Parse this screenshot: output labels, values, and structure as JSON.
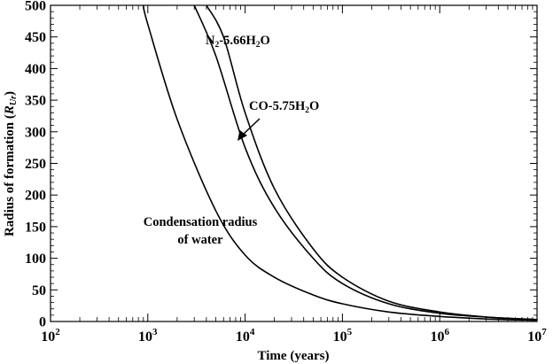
{
  "chart_data": {
    "type": "line",
    "xlabel": "Time (years)",
    "ylabel_main": "Radius of formation (",
    "ylabel_sym": "R",
    "ylabel_sub": "Ur",
    "ylabel_end": ")",
    "x_scale": "log",
    "xlim": [
      100,
      10000000
    ],
    "ylim": [
      0,
      500
    ],
    "x_ticks": [
      {
        "value": 100,
        "base": "10",
        "exp": "2"
      },
      {
        "value": 1000,
        "base": "10",
        "exp": "3"
      },
      {
        "value": 10000,
        "base": "10",
        "exp": "4"
      },
      {
        "value": 100000,
        "base": "10",
        "exp": "5"
      },
      {
        "value": 1000000,
        "base": "10",
        "exp": "6"
      },
      {
        "value": 10000000,
        "base": "10",
        "exp": "7"
      }
    ],
    "y_ticks": [
      0,
      50,
      100,
      150,
      200,
      250,
      300,
      350,
      400,
      450,
      500
    ],
    "grid": false,
    "series": [
      {
        "id": "water",
        "points": [
          [
            900,
            500
          ],
          [
            1000,
            470
          ],
          [
            2000,
            320
          ],
          [
            5000,
            175
          ],
          [
            10000,
            105
          ],
          [
            20000,
            70
          ],
          [
            50000,
            42
          ],
          [
            100000,
            28
          ],
          [
            300000,
            15
          ],
          [
            1000000,
            8
          ],
          [
            3000000,
            4
          ],
          [
            10000000,
            2
          ]
        ]
      },
      {
        "id": "co",
        "points": [
          [
            3000,
            500
          ],
          [
            5000,
            420
          ],
          [
            10000,
            275
          ],
          [
            20000,
            180
          ],
          [
            50000,
            100
          ],
          [
            100000,
            60
          ],
          [
            300000,
            28
          ],
          [
            1000000,
            13
          ],
          [
            3000000,
            7
          ],
          [
            10000000,
            3
          ]
        ]
      },
      {
        "id": "n2",
        "points": [
          [
            4000,
            500
          ],
          [
            6000,
            450
          ],
          [
            10000,
            330
          ],
          [
            20000,
            210
          ],
          [
            50000,
            115
          ],
          [
            100000,
            70
          ],
          [
            300000,
            32
          ],
          [
            1000000,
            15
          ],
          [
            3000000,
            7
          ],
          [
            10000000,
            3
          ]
        ]
      }
    ],
    "annotations": {
      "n2": {
        "main": "N",
        "sub1": "2",
        "mid": "-5.66H",
        "sub2": "2",
        "end": "O"
      },
      "co": {
        "main": "CO-5.75H",
        "sub": "2",
        "end": "O"
      },
      "water_line1": "Condensation radius",
      "water_line2": "of water"
    }
  }
}
